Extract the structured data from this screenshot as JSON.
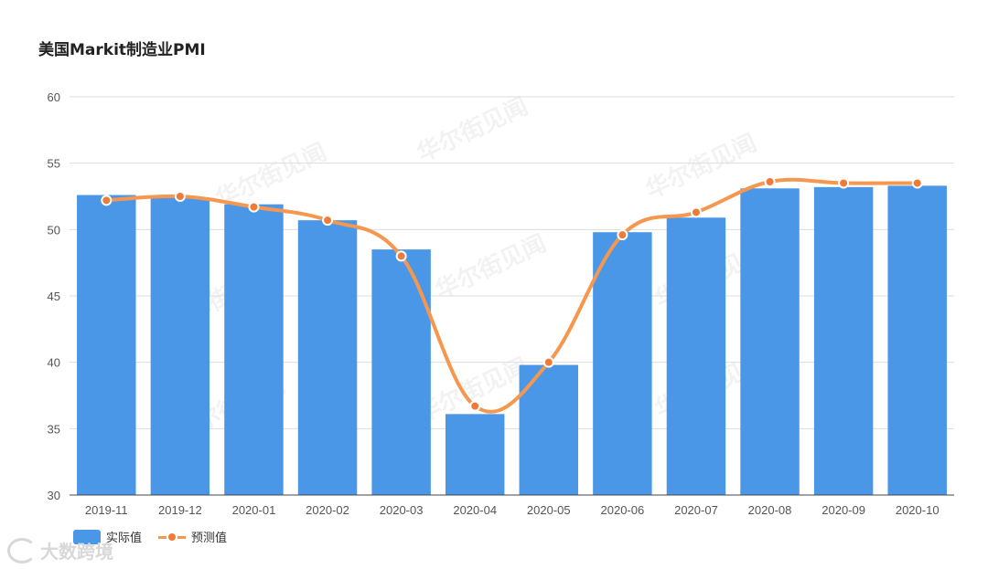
{
  "chart_data": {
    "type": "bar",
    "title": "美国Markit制造业PMI",
    "categories": [
      "2019-11",
      "2019-12",
      "2020-01",
      "2020-02",
      "2020-03",
      "2020-04",
      "2020-05",
      "2020-06",
      "2020-07",
      "2020-08",
      "2020-09",
      "2020-10"
    ],
    "series": [
      {
        "name": "实际值",
        "type": "bar",
        "values": [
          52.6,
          52.4,
          51.9,
          50.7,
          48.5,
          36.1,
          39.8,
          49.8,
          50.9,
          53.1,
          53.2,
          53.3
        ]
      },
      {
        "name": "预测值",
        "type": "line",
        "values": [
          52.2,
          52.5,
          51.7,
          50.7,
          48.0,
          36.7,
          40.0,
          49.6,
          51.3,
          53.6,
          53.5,
          53.5
        ]
      }
    ],
    "ylim": [
      30,
      60
    ],
    "yticks": [
      30,
      35,
      40,
      45,
      50,
      55,
      60
    ],
    "grid": true,
    "legend": "bottom-left",
    "colors": {
      "bar": "#4a97e8",
      "line": "#f5974e",
      "marker": "#f07a38",
      "grid": "#dddddd",
      "axis": "#444444",
      "text": "#555555"
    }
  },
  "watermark": {
    "text": "华尔街见闻"
  },
  "brand": {
    "text": "大数跨境"
  }
}
